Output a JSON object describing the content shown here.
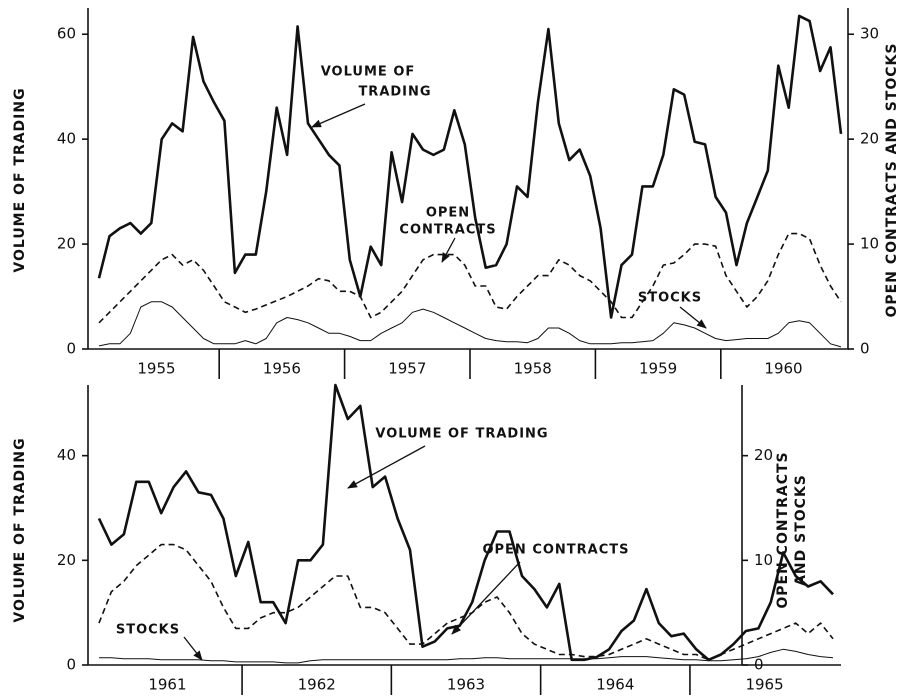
{
  "chart_data": [
    {
      "type": "line",
      "categories": [
        "1955",
        "1956",
        "1957",
        "1958",
        "1959",
        "1960"
      ],
      "ylabel": [
        "VOLUME OF TRADING"
      ],
      "y2label": [
        "OPEN CONTRACTS AND STOCKS"
      ],
      "ylim": [
        0,
        65
      ],
      "yticks": [
        0,
        20,
        40,
        60
      ],
      "y2lim": [
        0,
        32.5
      ],
      "y2ticks": [
        0,
        10,
        20,
        30
      ],
      "annotations": [
        {
          "lines": [
            "VOLUME OF",
            "TRADING"
          ]
        },
        {
          "lines": [
            "OPEN",
            "CONTRACTS"
          ]
        },
        {
          "lines": [
            "STOCKS"
          ]
        }
      ],
      "series": [
        {
          "color": "#111",
          "width": 2.6,
          "dash": false,
          "values": [
            [
              13.5,
              21.5,
              23,
              24,
              22,
              24,
              40,
              43,
              41.5,
              59.5,
              51,
              47
            ],
            [
              43.5,
              14.5,
              18,
              18,
              30,
              46,
              37,
              61.5,
              43,
              40,
              37,
              35
            ],
            [
              17,
              10,
              19.5,
              16,
              37.5,
              28,
              41,
              38,
              37,
              38,
              45.5,
              39
            ],
            [
              25,
              15.5,
              16,
              20,
              31,
              29,
              47,
              61,
              43,
              36,
              38,
              33
            ],
            [
              23,
              6,
              16,
              18,
              31,
              31,
              37,
              49.5,
              48.5,
              39.5,
              39,
              29
            ],
            [
              26,
              16,
              24,
              29,
              34,
              54,
              46,
              63.5,
              62.5,
              53,
              57.5,
              41
            ]
          ]
        },
        {
          "color": "#111",
          "width": 1.6,
          "dash": true,
          "axis": "y2",
          "values": [
            [
              2.5,
              3.5,
              4.5,
              5.5,
              6.5,
              7.5,
              8.5,
              9,
              8,
              8.5,
              7.5,
              6
            ],
            [
              4.5,
              4,
              3.5,
              3.8,
              4.2,
              4.6,
              5,
              5.5,
              6,
              6.7,
              6.5,
              5.5
            ],
            [
              5.5,
              5,
              3,
              3.5,
              4.5,
              5.5,
              7,
              8.5,
              9,
              9,
              9,
              8
            ],
            [
              6,
              6,
              4,
              3.8,
              5,
              6,
              7,
              7,
              8.5,
              8,
              7,
              6.5
            ],
            [
              5.5,
              4.5,
              3,
              3,
              4.5,
              6,
              8,
              8.2,
              9,
              10,
              10,
              9.8
            ],
            [
              7,
              5.5,
              4,
              5,
              6.5,
              9,
              11,
              11,
              10.5,
              8,
              6,
              4.5
            ]
          ]
        },
        {
          "color": "#111",
          "width": 1,
          "dash": false,
          "axis": "y2",
          "values": [
            [
              0.3,
              0.5,
              0.5,
              1.5,
              4,
              4.5,
              4.5,
              4,
              3,
              2,
              1,
              0.5
            ],
            [
              0.5,
              0.5,
              0.8,
              0.5,
              1,
              2.5,
              3,
              2.8,
              2.5,
              2,
              1.5,
              1.5
            ],
            [
              1.2,
              0.8,
              0.8,
              1.5,
              2,
              2.5,
              3.5,
              3.8,
              3.5,
              3,
              2.5,
              2
            ],
            [
              1.5,
              1,
              0.8,
              0.7,
              0.7,
              0.6,
              1,
              2,
              2,
              1.5,
              0.8,
              0.5
            ],
            [
              0.5,
              0.5,
              0.6,
              0.6,
              0.7,
              0.8,
              1.5,
              2.5,
              2.3,
              2,
              1.5,
              1
            ],
            [
              0.8,
              0.9,
              1,
              1,
              1,
              1.5,
              2.5,
              2.7,
              2.5,
              1.5,
              0.5,
              0.2
            ]
          ]
        }
      ]
    },
    {
      "type": "line",
      "categories": [
        "1961",
        "1962",
        "1963",
        "1964",
        "1965"
      ],
      "ylabel": [
        "VOLUME OF TRADING"
      ],
      "y2label": [
        "OPEN CONTRACTS",
        "AND STOCKS"
      ],
      "ylim": [
        0,
        53.5
      ],
      "yticks": [
        0,
        20,
        40
      ],
      "y2lim": [
        0,
        26.75
      ],
      "y2ticks": [
        0,
        10,
        20
      ],
      "annotations": [
        {
          "lines": [
            "VOLUME OF TRADING"
          ]
        },
        {
          "lines": [
            "OPEN CONTRACTS"
          ]
        },
        {
          "lines": [
            "STOCKS"
          ]
        }
      ],
      "series": [
        {
          "color": "#111",
          "width": 2.6,
          "dash": false,
          "values": [
            [
              28,
              23,
              25,
              35,
              35,
              29,
              34,
              37,
              33,
              32.5,
              28,
              17
            ],
            [
              23.5,
              12,
              12,
              8,
              20,
              20,
              23,
              53.5,
              47,
              49.5,
              34,
              36
            ],
            [
              28,
              22,
              3.5,
              4.5,
              7,
              7.5,
              12,
              20,
              25.5,
              25.5,
              17,
              14.5
            ],
            [
              11,
              15.5,
              1,
              1,
              1.5,
              3,
              6.5,
              8.5,
              14.5,
              8,
              5.5,
              6
            ],
            [
              3,
              1,
              2,
              4,
              6.5,
              7,
              12,
              21.5,
              17,
              15,
              16,
              13.5
            ]
          ]
        },
        {
          "color": "#111",
          "width": 1.6,
          "dash": true,
          "axis": "y2",
          "values": [
            [
              4,
              7,
              8,
              9.5,
              10.5,
              11.5,
              11.5,
              11,
              9.5,
              8,
              5.5,
              3.5
            ],
            [
              3.5,
              4.5,
              5,
              5,
              5.5,
              6.5,
              7.5,
              8.5,
              8.5,
              5.5,
              5.5,
              5
            ],
            [
              3.5,
              2,
              2,
              3,
              4,
              4.5,
              5,
              6,
              6.5,
              5,
              3,
              2
            ],
            [
              1.5,
              1,
              1,
              0.8,
              0.8,
              1,
              1.5,
              2,
              2.5,
              2,
              1.5,
              1
            ],
            [
              1,
              0.5,
              1,
              1.5,
              2,
              2.5,
              3,
              3.5,
              4,
              3,
              4,
              2.5
            ]
          ]
        },
        {
          "color": "#111",
          "width": 1,
          "dash": false,
          "axis": "y2",
          "values": [
            [
              0.7,
              0.7,
              0.6,
              0.6,
              0.6,
              0.5,
              0.5,
              0.5,
              0.5,
              0.4,
              0.4,
              0.3
            ],
            [
              0.3,
              0.3,
              0.3,
              0.2,
              0.2,
              0.4,
              0.5,
              0.5,
              0.5,
              0.5,
              0.5,
              0.5
            ],
            [
              0.5,
              0.5,
              0.5,
              0.5,
              0.5,
              0.6,
              0.6,
              0.7,
              0.7,
              0.6,
              0.6,
              0.6
            ],
            [
              0.6,
              0.6,
              0.6,
              0.6,
              0.6,
              0.7,
              0.8,
              0.8,
              0.8,
              0.7,
              0.6,
              0.5
            ],
            [
              0.5,
              0.4,
              0.4,
              0.5,
              0.6,
              0.8,
              1.2,
              1.5,
              1.3,
              1.0,
              0.8,
              0.7
            ]
          ]
        }
      ]
    }
  ]
}
